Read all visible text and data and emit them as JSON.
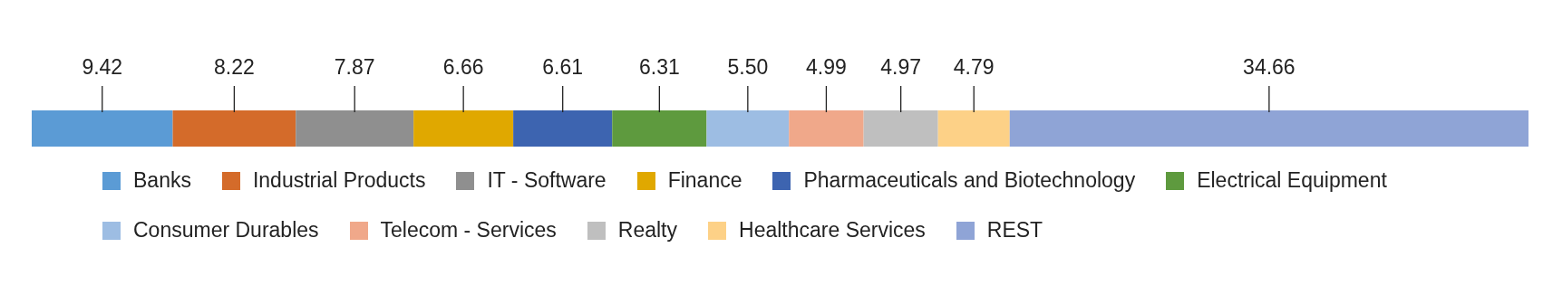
{
  "chart_data": {
    "type": "bar",
    "orientation": "horizontal",
    "stacked": true,
    "legend": "bottom",
    "categories": [
      null
    ],
    "series": [
      {
        "name": "Banks",
        "color": "#5b9bd5",
        "values": [
          9.42
        ],
        "value_labels": [
          "9.42"
        ]
      },
      {
        "name": "Industrial Products",
        "color": "#d46b2a",
        "values": [
          8.22
        ],
        "value_labels": [
          "8.22"
        ]
      },
      {
        "name": "IT - Software",
        "color": "#8f8f8f",
        "values": [
          7.87
        ],
        "value_labels": [
          "7.87"
        ]
      },
      {
        "name": "Finance",
        "color": "#e0a800",
        "values": [
          6.66
        ],
        "value_labels": [
          "6.66"
        ]
      },
      {
        "name": "Pharmaceuticals and Biotechnology",
        "color": "#3d64b0",
        "values": [
          6.61
        ],
        "value_labels": [
          "6.61"
        ]
      },
      {
        "name": "Electrical Equipment",
        "color": "#5e9a3e",
        "values": [
          6.31
        ],
        "value_labels": [
          "6.31"
        ]
      },
      {
        "name": "Consumer Durables",
        "color": "#9dbde3",
        "values": [
          5.5
        ],
        "value_labels": [
          "5.50"
        ]
      },
      {
        "name": "Telecom - Services",
        "color": "#f0a88a",
        "values": [
          4.99
        ],
        "value_labels": [
          "4.99"
        ]
      },
      {
        "name": "Realty",
        "color": "#bfbfbf",
        "values": [
          4.97
        ],
        "value_labels": [
          "4.97"
        ]
      },
      {
        "name": "Healthcare Services",
        "color": "#fdd187",
        "values": [
          4.79
        ],
        "value_labels": [
          "4.79"
        ]
      },
      {
        "name": "REST",
        "color": "#8fa4d6",
        "values": [
          34.66
        ],
        "value_labels": [
          "34.66"
        ]
      }
    ]
  }
}
